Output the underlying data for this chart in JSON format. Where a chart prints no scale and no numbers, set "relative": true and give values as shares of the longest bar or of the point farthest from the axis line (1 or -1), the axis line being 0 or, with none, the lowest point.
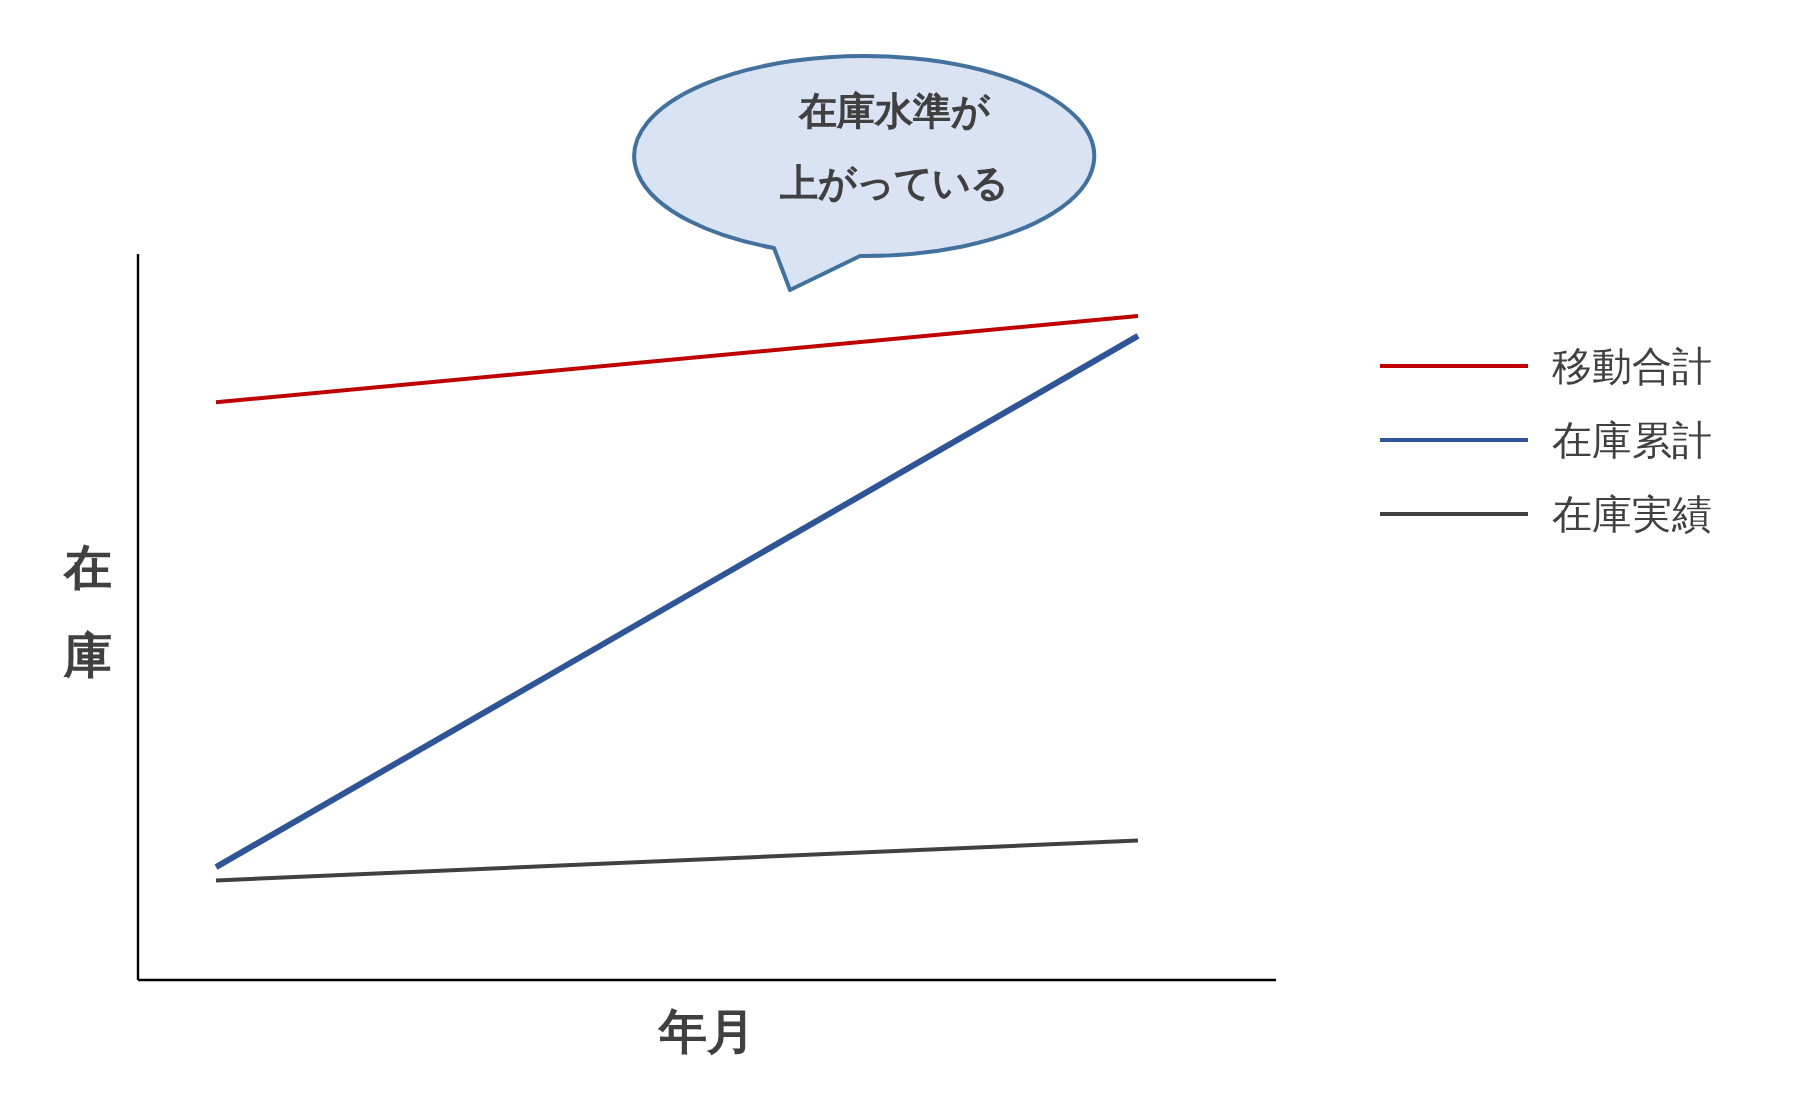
{
  "chart_data": {
    "type": "line",
    "relative": true,
    "xlabel": "年月",
    "ylabel": "在庫",
    "categories": [
      null,
      null
    ],
    "legend": "right",
    "marker": "none",
    "line_style": "solid",
    "series": [
      {
        "name": "移動合計",
        "color": "#c00000",
        "values": [
          0.87,
          1
        ]
      },
      {
        "name": "在庫累計",
        "color": "#2f5597",
        "values": [
          0.17,
          0.97
        ]
      },
      {
        "name": "在庫実績",
        "color": "#404040",
        "values": [
          0.15,
          0.21
        ]
      }
    ],
    "annotations": [
      "在庫水準が",
      "上がっている"
    ]
  }
}
